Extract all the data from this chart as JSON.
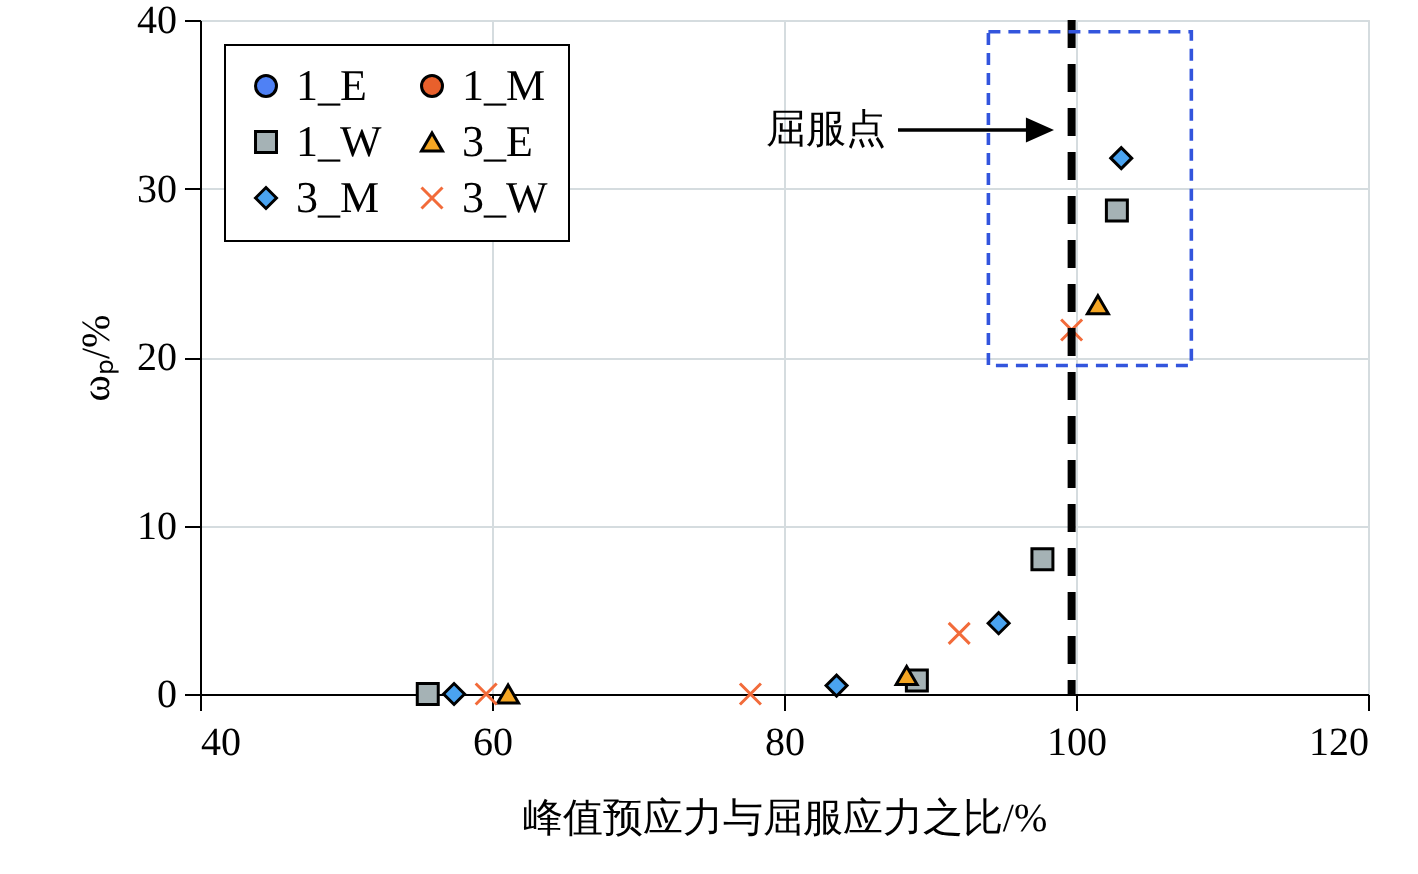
{
  "chart_data": {
    "type": "scatter",
    "xlabel": "峰值预应力与屈服应力之比/%",
    "ylabel": "ωₚ/%",
    "xlim": [
      40,
      120
    ],
    "xticks": [
      40,
      60,
      80,
      100,
      120
    ],
    "ylim": [
      0,
      40
    ],
    "yticks": [
      0,
      10,
      20,
      30,
      40
    ],
    "grid": true,
    "legend": "top left",
    "series": [
      {
        "name": "1_E",
        "color": "#4f81f5",
        "marker": "circle"
      },
      {
        "name": "1_M",
        "color": "#e8602c",
        "marker": "circle"
      },
      {
        "name": "1_W",
        "color": "#a5b2b5",
        "marker": "square",
        "x": [
          55.6,
          89.1,
          97.7,
          102.8
        ],
        "values": [
          0,
          0.8,
          8.0,
          28.7
        ]
      },
      {
        "name": "3_E",
        "color": "#f5a623",
        "marker": "triangle",
        "x": [
          61.1,
          88.4,
          101.5
        ],
        "values": [
          0,
          1.1,
          23.1
        ]
      },
      {
        "name": "3_M",
        "color": "#4aa3f0",
        "marker": "diamond",
        "x": [
          57.4,
          83.6,
          94.7,
          103.1
        ],
        "values": [
          0,
          0.5,
          4.2,
          31.8
        ]
      },
      {
        "name": "3_W",
        "color": "#f26b3a",
        "marker": "cross",
        "x": [
          59.6,
          77.7,
          92.0,
          99.7
        ],
        "values": [
          0,
          0,
          3.6,
          21.6
        ]
      }
    ],
    "ref_lines": [
      {
        "axis": "x",
        "value": 99.7,
        "color": "#000000",
        "line_style": "dashed"
      }
    ],
    "annotations": [
      "屈服点"
    ]
  }
}
